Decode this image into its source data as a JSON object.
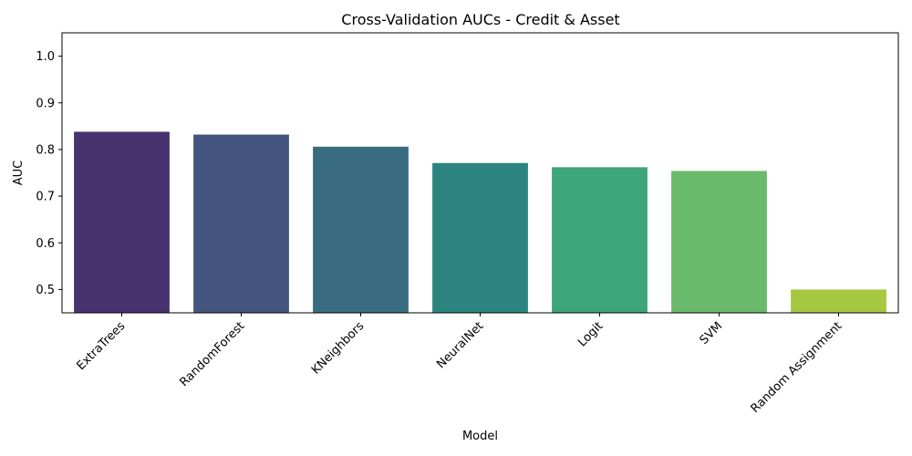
{
  "chart_data": {
    "type": "bar",
    "title": "Cross-Validation AUCs - Credit & Asset",
    "xlabel": "Model",
    "ylabel": "AUC",
    "categories": [
      "ExtraTrees",
      "RandomForest",
      "KNeighbors",
      "NeuralNet",
      "Logit",
      "SVM",
      "Random Assignment"
    ],
    "values": [
      0.838,
      0.832,
      0.806,
      0.771,
      0.762,
      0.754,
      0.5
    ],
    "colors": [
      "#48336e",
      "#44557f",
      "#3a6c81",
      "#2c8480",
      "#3ea479",
      "#6aba6b",
      "#a5c841"
    ],
    "ylim": [
      0.45,
      1.05
    ],
    "yticks": [
      0.5,
      0.6,
      0.7,
      0.8,
      0.9,
      1.0
    ],
    "ytick_labels": [
      "0.5",
      "0.6",
      "0.7",
      "0.8",
      "0.9",
      "1.0"
    ],
    "grid": false,
    "xtick_rotation": 45
  }
}
